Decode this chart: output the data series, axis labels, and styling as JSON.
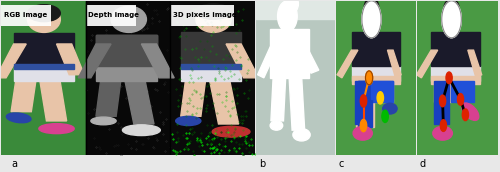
{
  "panel_labels": [
    "a",
    "b",
    "c",
    "d"
  ],
  "bg_color": "#e8e8e8",
  "label_bg": "#c8c8c8",
  "green_bg": "#3a8a3a",
  "green_bg2": "#4a9a44",
  "dark_bg": "#080808",
  "border_color": "#000000",
  "skin_color": "#e8c4a8",
  "skin_dark": "#d4a880",
  "shirt_dark": "#1a1a2a",
  "shirt_blue_stripe": "#3050a0",
  "shorts_white": "#e0e0e8",
  "shoe_pink": "#d84090",
  "shoe_blue": "#2844a8",
  "shoe_red": "#c03030",
  "segment_blue": "#1840c0",
  "segment_blue2": "#2050d8",
  "joint_orange": "#ff8800",
  "joint_yellow": "#ffcc00",
  "joint_red": "#dd2200",
  "joint_green": "#00bb00",
  "gray_bg": "#b8c8c0",
  "gray_bg2": "#c0d0c8",
  "white_silhouette": "#ffffff",
  "fig_width": 5.0,
  "fig_height": 1.72,
  "dpi": 100,
  "label_bar_height": 0.1
}
